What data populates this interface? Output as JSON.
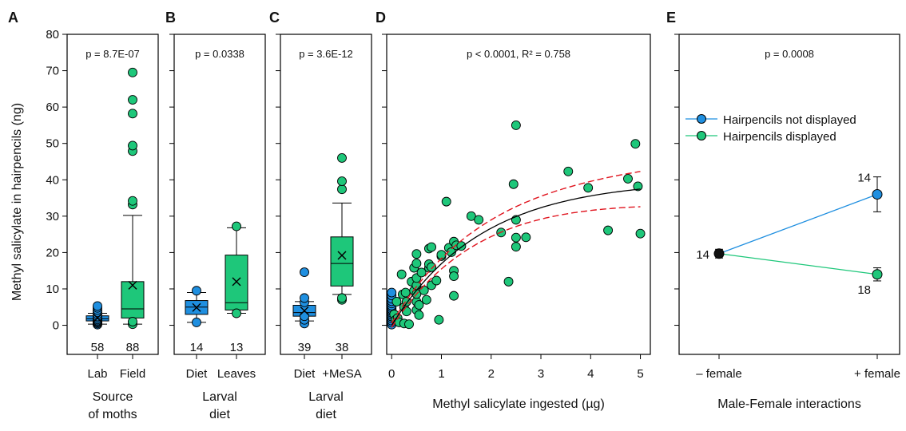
{
  "chart_data": [
    {
      "panel": "A",
      "type": "box",
      "ylabel": "Methyl salicylate in hairpencils (ng)",
      "ylim": [
        -8,
        80
      ],
      "yticks": [
        0,
        10,
        20,
        30,
        40,
        50,
        60,
        70,
        80
      ],
      "annotation": "p = 8.7E-07",
      "xtitle": [
        "Source",
        "of moths"
      ],
      "categories": [
        {
          "label": "Lab",
          "n": "58",
          "color": "#1f8fe0",
          "q1": 1.2,
          "median": 1.8,
          "q3": 2.6,
          "whisker_low": 0.3,
          "whisker_high": 3.3,
          "mean": 2.0,
          "points": [
            0.2,
            0.5,
            0.8,
            1.0,
            1.3,
            1.6,
            2.0,
            2.4,
            3.0,
            3.6,
            4.2,
            4.8,
            5.3
          ]
        },
        {
          "label": "Field",
          "n": "88",
          "color": "#1ec77a",
          "q1": 2.0,
          "median": 4.5,
          "q3": 12.0,
          "whisker_low": 0.3,
          "whisker_high": 30.2,
          "mean": 11.0,
          "points": [
            0.3,
            1.0,
            33.2,
            34.2,
            47.9,
            49.4,
            58.2,
            62.0,
            69.5
          ]
        }
      ]
    },
    {
      "panel": "B",
      "type": "box",
      "ylim": [
        -8,
        80
      ],
      "annotation": "p = 0.0338",
      "xtitle": [
        "Larval",
        "diet"
      ],
      "categories": [
        {
          "label": "Diet",
          "n": "14",
          "color": "#1f8fe0",
          "q1": 3.0,
          "median": 5.0,
          "q3": 6.8,
          "whisker_low": 0.8,
          "whisker_high": 9.0,
          "mean": 4.9,
          "points": [
            0.8,
            9.5
          ]
        },
        {
          "label": "Leaves",
          "n": "13",
          "color": "#1ec77a",
          "q1": 4.2,
          "median": 6.2,
          "q3": 19.3,
          "whisker_low": 3.3,
          "whisker_high": 26.8,
          "mean": 12.0,
          "points": [
            3.3,
            27.2
          ]
        }
      ]
    },
    {
      "panel": "C",
      "type": "box",
      "ylim": [
        -8,
        80
      ],
      "annotation": "p = 3.6E-12",
      "xtitle": [
        "Larval",
        "diet"
      ],
      "categories": [
        {
          "label": "Diet",
          "n": "39",
          "color": "#1f8fe0",
          "q1": 2.5,
          "median": 3.5,
          "q3": 5.5,
          "whisker_low": 1.2,
          "whisker_high": 6.5,
          "mean": 4.0,
          "points": [
            0.5,
            1.5,
            2.5,
            6.3,
            7.5,
            14.6
          ]
        },
        {
          "label": "+MeSA",
          "n": "38",
          "color": "#1ec77a",
          "q1": 10.8,
          "median": 17.0,
          "q3": 24.3,
          "whisker_low": 8.5,
          "whisker_high": 33.6,
          "mean": 19.2,
          "points": [
            7.0,
            7.5,
            37.4,
            39.6,
            46.0
          ]
        }
      ]
    },
    {
      "panel": "D",
      "type": "scatter",
      "xlabel": "Methyl salicylate ingested (µg)",
      "xlim": [
        -0.1,
        5.2
      ],
      "xticks": [
        0,
        1,
        2,
        3,
        4,
        5
      ],
      "ylim": [
        -8,
        80
      ],
      "annotation": "p < 0.0001,  R² = 0.758",
      "fit": {
        "a": 40.0,
        "b": 0.55
      },
      "series": [
        {
          "color": "#1f8fe0",
          "x": [
            0,
            0,
            0,
            0,
            0,
            0,
            0,
            0,
            0,
            0,
            0,
            0,
            0,
            0,
            0,
            0
          ],
          "y": [
            0.2,
            0.8,
            1.3,
            1.9,
            2.4,
            2.9,
            3.4,
            3.9,
            4.4,
            4.9,
            5.4,
            6.0,
            6.6,
            7.3,
            8.2,
            9.0
          ]
        },
        {
          "color": "#1ec77a",
          "x": [
            0.05,
            0.08,
            0.1,
            0.12,
            0.15,
            0.2,
            0.22,
            0.25,
            0.25,
            0.28,
            0.3,
            0.3,
            0.35,
            0.4,
            0.45,
            0.45,
            0.5,
            0.5,
            0.5,
            0.5,
            0.5,
            0.5,
            0.5,
            0.55,
            0.55,
            0.6,
            0.65,
            0.7,
            0.75,
            0.75,
            0.75,
            0.8,
            0.8,
            0.8,
            0.9,
            0.95,
            1.0,
            1.0,
            1.1,
            1.15,
            1.2,
            1.25,
            1.25,
            1.25,
            1.25,
            1.3,
            1.4,
            1.6,
            1.75,
            2.2,
            2.35,
            2.45,
            2.5,
            2.5,
            2.5,
            2.5,
            2.7,
            3.55,
            3.95,
            4.35,
            4.75,
            4.9,
            4.95,
            5.0
          ],
          "y": [
            3.0,
            1.5,
            6.5,
            2.0,
            0.8,
            14.0,
            8.5,
            5.0,
            0.5,
            9.0,
            6.5,
            3.8,
            0.3,
            12.0,
            15.8,
            9.5,
            4.2,
            6.5,
            8.6,
            11.0,
            13.0,
            17.0,
            19.6,
            2.8,
            5.6,
            14.5,
            9.6,
            7.0,
            15.8,
            16.8,
            21.1,
            11.0,
            16.0,
            21.5,
            12.3,
            1.5,
            19.0,
            19.4,
            34.0,
            21.3,
            20.1,
            23.0,
            15.0,
            13.5,
            8.1,
            22.0,
            21.8,
            30.0,
            29.0,
            25.5,
            12.0,
            38.8,
            55.0,
            29.0,
            24.1,
            21.6,
            24.2,
            42.3,
            37.8,
            26.1,
            40.3,
            49.9,
            38.2,
            25.2
          ]
        }
      ]
    },
    {
      "panel": "E",
      "type": "line",
      "xlabel": "Male-Female interactions",
      "categories": [
        "– female",
        "+ female"
      ],
      "ylim": [
        -8,
        80
      ],
      "annotation": "p = 0.0008",
      "legend": [
        {
          "name": "Hairpencils not displayed",
          "color": "#1f8fe0"
        },
        {
          "name": "Hairpencils displayed",
          "color": "#1ec77a"
        }
      ],
      "start": {
        "y": 19.7,
        "err": 1.2,
        "n": "14",
        "color": "#111111"
      },
      "series": [
        {
          "name": "Hairpencils not displayed",
          "color": "#1f8fe0",
          "y_end": 36.0,
          "err_end": 4.8,
          "n_end": "14"
        },
        {
          "name": "Hairpencils displayed",
          "color": "#1ec77a",
          "y_end": 14.0,
          "err_end": 1.8,
          "n_end": "18"
        }
      ]
    }
  ]
}
